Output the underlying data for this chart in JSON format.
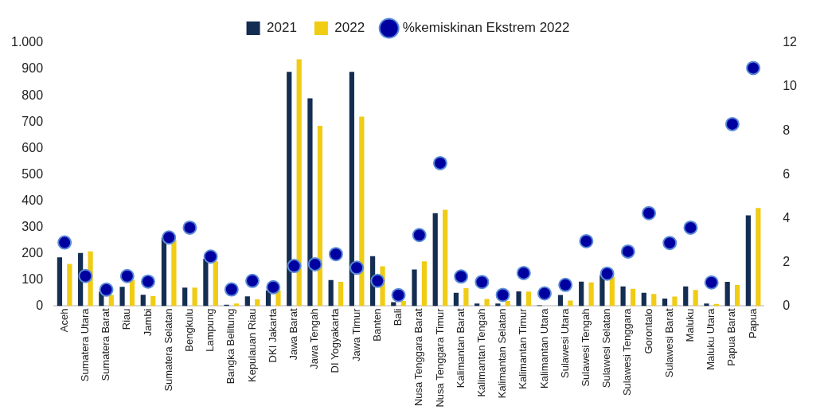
{
  "chart_data": {
    "type": "bar",
    "categories": [
      "Aceh",
      "Sumatera Utara",
      "Sumatera Barat",
      "Riau",
      "Jambi",
      "Sumatera Selatan",
      "Bengkulu",
      "Lampung",
      "Bangka Belitung",
      "Kepulauan Riau",
      "DKI Jakarta",
      "Jawa Barat",
      "Jawa Tengah",
      "DI Yogyakarta",
      "Jawa Timur",
      "Banten",
      "Bali",
      "Nusa Tenggara Barat",
      "Nusa Tenggara Timur",
      "Kalimantan Barat",
      "Kalimantan Tengah",
      "Kalimantan Selatan",
      "Kalimantan Timur",
      "Kalimantan Utara",
      "Sulawesi Utara",
      "Sulawesi Tengah",
      "Sulawesi Selatan",
      "Sulawesi Tenggara",
      "Gorontalo",
      "Sulawesi Barat",
      "Maluku",
      "Maluku Utara",
      "Papua Barat",
      "Papua"
    ],
    "series": [
      {
        "name": "2021",
        "color": "#142d52",
        "values": [
          185,
          202,
          55,
          73,
          43,
          260,
          70,
          180,
          5,
          37,
          60,
          890,
          790,
          99,
          890,
          190,
          15,
          139,
          353,
          51,
          10,
          10,
          56,
          3,
          42,
          93,
          118,
          75,
          51,
          29,
          75,
          10,
          92,
          345
        ]
      },
      {
        "name": "2022",
        "color": "#f0cc14",
        "values": [
          160,
          208,
          42,
          100,
          38,
          250,
          70,
          170,
          10,
          26,
          60,
          938,
          685,
          92,
          720,
          151,
          20,
          170,
          366,
          68,
          27,
          20,
          55,
          null,
          21,
          90,
          112,
          66,
          46,
          36,
          61,
          8,
          80,
          373
        ]
      },
      {
        "name": "%kemiskinan Ekstrem 2022",
        "type": "scatter",
        "axis": "y2",
        "color": "#0000a0",
        "x": [
          "Aceh",
          "Sumatera Utara",
          "Sumatera Barat",
          "Riau",
          "Jambi",
          "Sumatera Selatan",
          "Bengkulu",
          "Lampung",
          "Bangka Belitung",
          "Kepulauan Riau",
          "DKI Jakarta",
          "Jawa Barat",
          "Jawa Tengah",
          "DI Yogyakarta",
          "Jawa Timur",
          "Banten",
          "Bali",
          "Nusa Tenggara Barat",
          "Nusa Tenggara Timur",
          "Kalimantan Barat",
          "Kalimantan Tengah",
          "Kalimantan Selatan",
          "Kalimantan Timur",
          "Kalimantan Utara",
          "Sulawesi Utara",
          "Sulawesi Tengah",
          "Sulawesi Selatan",
          "Sulawesi Tenggara",
          "Gorontalo",
          "Sulawesi Barat",
          "Maluku",
          "Maluku Utara",
          "Papua Barat",
          "Papua"
        ],
        "values": [
          2.9,
          1.37,
          0.75,
          1.37,
          1.12,
          3.13,
          3.58,
          2.26,
          0.76,
          1.15,
          0.86,
          1.83,
          1.91,
          2.37,
          1.75,
          1.15,
          0.5,
          3.24,
          6.52,
          1.35,
          1.1,
          0.51,
          1.51,
          0.58,
          0.97,
          2.96,
          1.48,
          2.49,
          4.24,
          2.88,
          3.58,
          1.08,
          8.3,
          10.86
        ]
      }
    ],
    "ylim": [
      0,
      1000
    ],
    "yticks": [
      0,
      100,
      200,
      300,
      400,
      500,
      600,
      700,
      800,
      900,
      {
        "value": 1000,
        "label": "1.000"
      }
    ],
    "y2lim": [
      0,
      12
    ],
    "y2ticks": [
      0,
      2,
      4,
      6,
      8,
      10,
      12
    ],
    "grid": false,
    "legend": "top",
    "marker": "circle"
  }
}
